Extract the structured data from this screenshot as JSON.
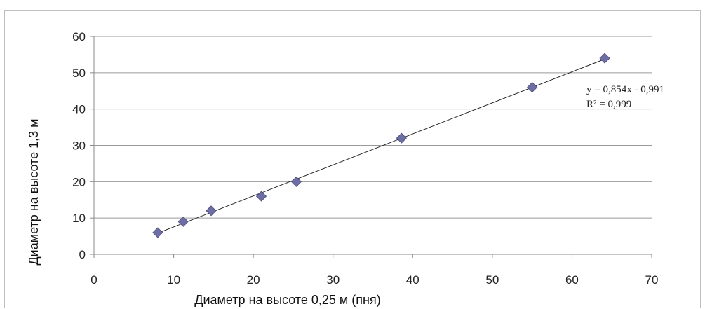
{
  "chart_data": {
    "type": "scatter",
    "xlabel": "Диаметр на высоте 0,25 м (пня)",
    "ylabel": "Диаметр на высоте 1,3 м",
    "xlim": [
      0,
      70
    ],
    "ylim": [
      0,
      60
    ],
    "x_ticks": [
      "0",
      "10",
      "20",
      "30",
      "40",
      "50",
      "60",
      "70"
    ],
    "y_ticks": [
      "0",
      "10",
      "20",
      "30",
      "40",
      "50",
      "60"
    ],
    "grid": "horizontal",
    "series": [
      {
        "points": [
          {
            "x": 8,
            "y": 6
          },
          {
            "x": 11.2,
            "y": 9
          },
          {
            "x": 14.7,
            "y": 12
          },
          {
            "x": 21,
            "y": 16
          },
          {
            "x": 25.4,
            "y": 20
          },
          {
            "x": 38.6,
            "y": 32
          },
          {
            "x": 55,
            "y": 46
          },
          {
            "x": 64.1,
            "y": 54
          }
        ],
        "color": "#6d6ea3"
      }
    ],
    "trendline": {
      "type": "linear",
      "slope": 0.854,
      "intercept": -0.991,
      "x_range": [
        8,
        64.1
      ],
      "equation_label": "y = 0,854x - 0,991",
      "r2_label": "R² = 0,999",
      "color": "#222222"
    }
  }
}
